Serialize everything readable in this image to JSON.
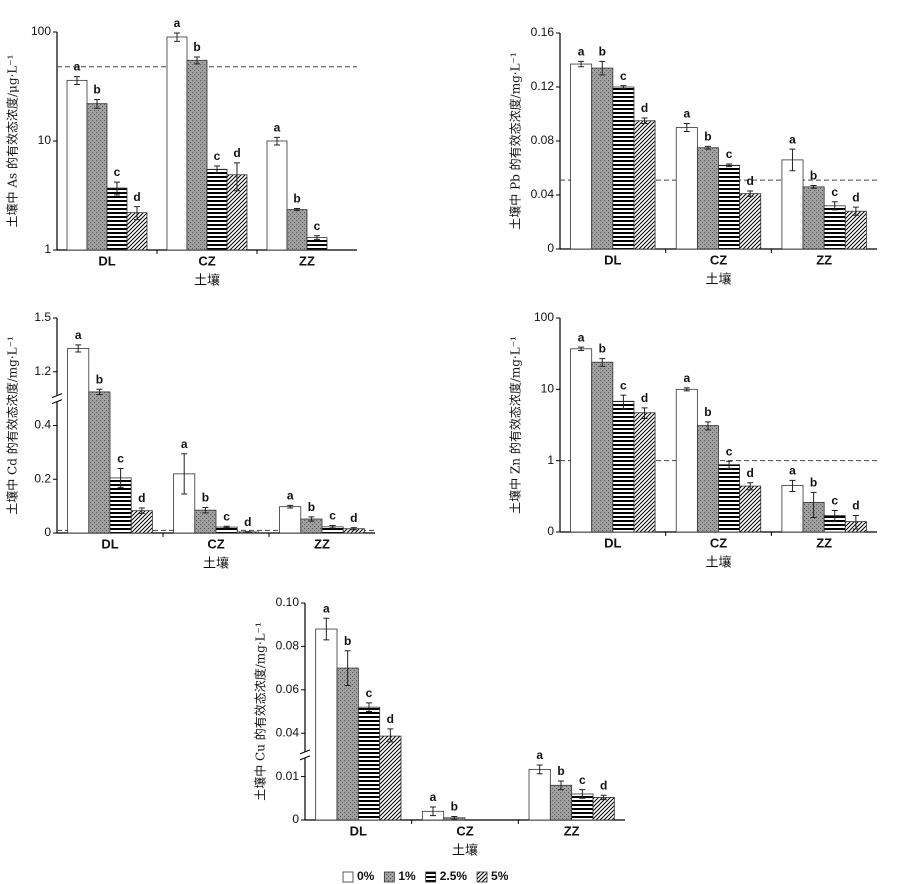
{
  "chart_data": [
    {
      "type": "bar",
      "ylabel": "土壤中 As 的有效态浓度/μg·L⁻¹",
      "xlabel": "土壤",
      "yscale": "log",
      "categories": [
        "DL",
        "CZ",
        "ZZ"
      ],
      "ylim": [
        1,
        100
      ],
      "yticks": [
        1,
        10,
        100
      ],
      "reference_line": 48,
      "series": [
        {
          "name": "0%",
          "color": "#ffffff",
          "hatch": "none",
          "values": [
            36,
            90,
            10
          ],
          "errors": [
            3,
            8,
            0.8
          ],
          "significance": [
            "a",
            "a",
            "a"
          ]
        },
        {
          "name": "1%",
          "color": "#a0a0a0",
          "hatch": "dots",
          "values": [
            22,
            55,
            2.35
          ],
          "errors": [
            2,
            4,
            0.05
          ],
          "significance": [
            "b",
            "b",
            "b"
          ]
        },
        {
          "name": "2.5%",
          "color": "#000000",
          "hatch": "horizontal",
          "values": [
            3.7,
            5.5,
            1.3
          ],
          "errors": [
            0.5,
            0.4,
            0.05
          ],
          "significance": [
            "c",
            "c",
            "c"
          ]
        },
        {
          "name": "5%",
          "color": "#000000",
          "hatch": "diagonal",
          "values": [
            2.2,
            4.9,
            null
          ],
          "errors": [
            0.3,
            1.4,
            null
          ],
          "significance": [
            "d",
            "d",
            null
          ]
        }
      ]
    },
    {
      "type": "bar",
      "ylabel": "土壤中 Pb 的有效态浓度/mg·L⁻¹",
      "xlabel": "土壤",
      "yscale": "linear",
      "categories": [
        "DL",
        "CZ",
        "ZZ"
      ],
      "ylim": [
        0,
        0.16
      ],
      "yticks": [
        0,
        0.04,
        0.08,
        0.12,
        0.16
      ],
      "reference_line": 0.051,
      "series": [
        {
          "name": "0%",
          "color": "#ffffff",
          "hatch": "none",
          "values": [
            0.137,
            0.09,
            0.066
          ],
          "errors": [
            0.002,
            0.003,
            0.008
          ],
          "significance": [
            "a",
            "a",
            "a"
          ]
        },
        {
          "name": "1%",
          "color": "#a0a0a0",
          "hatch": "dots",
          "values": [
            0.134,
            0.075,
            0.046
          ],
          "errors": [
            0.005,
            0.001,
            0.001
          ],
          "significance": [
            "b",
            "b",
            "b"
          ]
        },
        {
          "name": "2.5%",
          "color": "#000000",
          "hatch": "horizontal",
          "values": [
            0.12,
            0.062,
            0.032
          ],
          "errors": [
            0.001,
            0.001,
            0.003
          ],
          "significance": [
            "c",
            "c",
            "c"
          ]
        },
        {
          "name": "5%",
          "color": "#000000",
          "hatch": "diagonal",
          "values": [
            0.095,
            0.041,
            0.028
          ],
          "errors": [
            0.002,
            0.002,
            0.003
          ],
          "significance": [
            "d",
            "d",
            "d"
          ]
        }
      ]
    },
    {
      "type": "bar",
      "ylabel": "土壤中 Cd 的有效态浓度/mg·L⁻¹",
      "xlabel": "土壤",
      "yscale": "linear",
      "axis_break": true,
      "categories": [
        "DL",
        "CZ",
        "ZZ"
      ],
      "ylim": [
        0,
        1.5
      ],
      "yticks": [
        0,
        0.2,
        0.4,
        1.2,
        1.5
      ],
      "reference_line": 0.01,
      "series": [
        {
          "name": "0%",
          "color": "#ffffff",
          "hatch": "none",
          "values": [
            1.33,
            0.22,
            0.098
          ],
          "errors": [
            0.02,
            0.075,
            0.005
          ],
          "significance": [
            "a",
            "a",
            "a"
          ]
        },
        {
          "name": "1%",
          "color": "#a0a0a0",
          "hatch": "dots",
          "values": [
            0.9,
            0.085,
            0.052
          ],
          "errors": [
            0.04,
            0.01,
            0.008
          ],
          "significance": [
            "b",
            "b",
            "b"
          ]
        },
        {
          "name": "2.5%",
          "color": "#000000",
          "hatch": "horizontal",
          "values": [
            0.205,
            0.022,
            0.023
          ],
          "errors": [
            0.035,
            0.003,
            0.005
          ],
          "significance": [
            "c",
            "c",
            "c"
          ]
        },
        {
          "name": "5%",
          "color": "#000000",
          "hatch": "diagonal",
          "values": [
            0.083,
            0.004,
            0.016
          ],
          "errors": [
            0.01,
            0.001,
            0.004
          ],
          "significance": [
            "d",
            "d",
            "d"
          ]
        }
      ]
    },
    {
      "type": "bar",
      "ylabel": "土壤中 Zn 的有效态浓度/mg·L⁻¹",
      "xlabel": "土壤",
      "yscale": "log",
      "categories": [
        "DL",
        "CZ",
        "ZZ"
      ],
      "ylim": [
        0.1,
        100
      ],
      "yticks": [
        {
          "value": 0.1,
          "label": "0"
        },
        1,
        10,
        100
      ],
      "reference_line": 1,
      "series": [
        {
          "name": "0%",
          "color": "#ffffff",
          "hatch": "none",
          "values": [
            37,
            10,
            0.45
          ],
          "errors": [
            2,
            0.5,
            0.08
          ],
          "significance": [
            "a",
            "a",
            "a"
          ]
        },
        {
          "name": "1%",
          "color": "#a0a0a0",
          "hatch": "dots",
          "values": [
            24,
            3.1,
            0.26
          ],
          "errors": [
            3,
            0.4,
            0.1
          ],
          "significance": [
            "b",
            "b",
            "b"
          ]
        },
        {
          "name": "2.5%",
          "color": "#000000",
          "hatch": "horizontal",
          "values": [
            6.8,
            0.88,
            0.17
          ],
          "errors": [
            1.5,
            0.1,
            0.03
          ],
          "significance": [
            "c",
            "c",
            "c"
          ]
        },
        {
          "name": "5%",
          "color": "#000000",
          "hatch": "diagonal",
          "values": [
            4.7,
            0.44,
            0.14
          ],
          "errors": [
            0.8,
            0.05,
            0.03
          ],
          "significance": [
            "d",
            "d",
            "d"
          ]
        }
      ]
    },
    {
      "type": "bar",
      "ylabel": "土壤中 Cu 的有效态浓度/mg·L⁻¹",
      "xlabel": "土壤",
      "yscale": "linear",
      "axis_break": true,
      "categories": [
        "DL",
        "CZ",
        "ZZ"
      ],
      "ylim": [
        0,
        0.1
      ],
      "yticks": [
        0,
        0.01,
        0.04,
        0.06,
        0.08,
        {
          "value": 0.1,
          "label": "0.10"
        }
      ],
      "series": [
        {
          "name": "0%",
          "color": "#ffffff",
          "hatch": "none",
          "values": [
            0.088,
            0.002,
            0.015
          ],
          "errors": [
            0.005,
            0.001,
            0.003
          ],
          "significance": [
            "a",
            "a",
            "a"
          ]
        },
        {
          "name": "1%",
          "color": "#a0a0a0",
          "hatch": "dots",
          "values": [
            0.07,
            0.0005,
            0.008
          ],
          "errors": [
            0.008,
            0.0003,
            0.001
          ],
          "significance": [
            "b",
            "b",
            "b"
          ]
        },
        {
          "name": "2.5%",
          "color": "#000000",
          "hatch": "horizontal",
          "values": [
            0.052,
            null,
            0.006
          ],
          "errors": [
            0.002,
            null,
            0.001
          ],
          "significance": [
            "c",
            null,
            "c"
          ]
        },
        {
          "name": "5%",
          "color": "#000000",
          "hatch": "diagonal",
          "values": [
            0.038,
            null,
            0.0052
          ],
          "errors": [
            0.004,
            null,
            0.0005
          ],
          "significance": [
            "d",
            null,
            "d"
          ]
        }
      ]
    }
  ]
}
